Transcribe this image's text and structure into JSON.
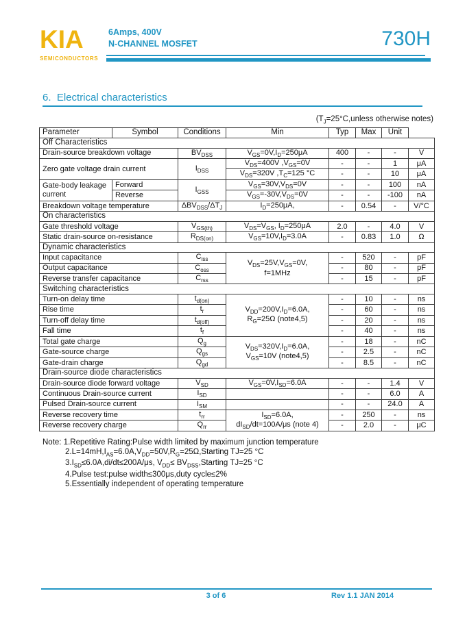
{
  "colors": {
    "accent": "#2196c4",
    "logo": "#efb410"
  },
  "header": {
    "logo_text": "KIA",
    "logo_sub": "SEMICONDUCTORS",
    "subtitle_line1": "6Amps, 400V",
    "subtitle_line2": "N-CHANNEL MOSFET",
    "part_number": "730H"
  },
  "section": {
    "title": "6.  Electrical characteristics",
    "condition_note": "(T~J~=25°C,unless otherwise notes)"
  },
  "table": {
    "headers": [
      "Parameter",
      "Symbol",
      "Conditions",
      "Min",
      "Typ",
      "Max",
      "Unit"
    ],
    "rows": [
      {
        "sec": "Off Characteristics"
      },
      {
        "cells": [
          {
            "t": "Drain-source breakdown voltage",
            "k": "p",
            "cs": 2
          },
          {
            "t": "BV~DSS~",
            "k": "s"
          },
          {
            "t": "V~GS~=0V,I~D~=250μA",
            "k": "c"
          },
          {
            "t": "400",
            "k": "n"
          },
          {
            "t": "-",
            "k": "n"
          },
          {
            "t": "-",
            "k": "n"
          },
          {
            "t": "V",
            "k": "u"
          }
        ]
      },
      {
        "cells": [
          {
            "t": "Zero gate voltage drain current",
            "k": "p",
            "cs": 2,
            "rs": 2
          },
          {
            "t": "I~DSS~",
            "k": "s",
            "rs": 2
          },
          {
            "t": "V~DS~=400V ,V~GS~=0V",
            "k": "c"
          },
          {
            "t": "-",
            "k": "n"
          },
          {
            "t": "-",
            "k": "n"
          },
          {
            "t": "1",
            "k": "n"
          },
          {
            "t": "μA",
            "k": "u"
          }
        ]
      },
      {
        "cells": [
          {
            "t": "V~DS~=320V ,T~C~=125 °C",
            "k": "c"
          },
          {
            "t": "-",
            "k": "n"
          },
          {
            "t": "-",
            "k": "n"
          },
          {
            "t": "10",
            "k": "n"
          },
          {
            "t": "μA",
            "k": "u"
          }
        ]
      },
      {
        "cells": [
          {
            "t": "Gate-body leakage current",
            "k": "pa",
            "rs": 2
          },
          {
            "t": "Forward",
            "k": "pb"
          },
          {
            "t": "I~GSS~",
            "k": "s",
            "rs": 2
          },
          {
            "t": "V~GS~=30V,V~DS~=0V",
            "k": "c"
          },
          {
            "t": "-",
            "k": "n"
          },
          {
            "t": "-",
            "k": "n"
          },
          {
            "t": "100",
            "k": "n"
          },
          {
            "t": "nA",
            "k": "u"
          }
        ]
      },
      {
        "cells": [
          {
            "t": "Reverse",
            "k": "pb"
          },
          {
            "t": "V~GS~=-30V,V~DS~=0V",
            "k": "c"
          },
          {
            "t": "-",
            "k": "n"
          },
          {
            "t": "-",
            "k": "n"
          },
          {
            "t": "-100",
            "k": "n"
          },
          {
            "t": "nA",
            "k": "u"
          }
        ]
      },
      {
        "cells": [
          {
            "t": "Breakdown voltage temperature",
            "k": "p",
            "cs": 2
          },
          {
            "t": "ΔBV~DSS~/ΔT~J~",
            "k": "s"
          },
          {
            "t": "I~D~=250μA,",
            "k": "c"
          },
          {
            "t": "-",
            "k": "n"
          },
          {
            "t": "0.54",
            "k": "n"
          },
          {
            "t": "-",
            "k": "n"
          },
          {
            "t": "V/°C",
            "k": "u"
          }
        ]
      },
      {
        "sec": "On characteristics"
      },
      {
        "cells": [
          {
            "t": "Gate threshold voltage",
            "k": "p",
            "cs": 2
          },
          {
            "t": "V~GS(th)~",
            "k": "s"
          },
          {
            "t": "V~DS~=V~GS~, I~D~=250μA",
            "k": "c"
          },
          {
            "t": "2.0",
            "k": "n"
          },
          {
            "t": "-",
            "k": "n"
          },
          {
            "t": "4.0",
            "k": "n"
          },
          {
            "t": "V",
            "k": "u"
          }
        ]
      },
      {
        "cells": [
          {
            "t": "Static drain-source on-resistance",
            "k": "p",
            "cs": 2
          },
          {
            "t": "R~DS(on)~",
            "k": "s"
          },
          {
            "t": "V~GS~=10V,I~D~=3.0A",
            "k": "c"
          },
          {
            "t": "-",
            "k": "n"
          },
          {
            "t": "0.83",
            "k": "n"
          },
          {
            "t": "1.0",
            "k": "n"
          },
          {
            "t": "Ω",
            "k": "u"
          }
        ]
      },
      {
        "sec": "Dynamic characteristics"
      },
      {
        "cells": [
          {
            "t": "Input capacitance",
            "k": "p",
            "cs": 2
          },
          {
            "t": "C~iss~",
            "k": "s"
          },
          {
            "t": "V~DS~=25V,V~GS~=0V,\nf=1MHz",
            "k": "c",
            "rs": 3
          },
          {
            "t": "-",
            "k": "n"
          },
          {
            "t": "520",
            "k": "n"
          },
          {
            "t": "-",
            "k": "n"
          },
          {
            "t": "pF",
            "k": "u"
          }
        ]
      },
      {
        "cells": [
          {
            "t": "Output capacitance",
            "k": "p",
            "cs": 2
          },
          {
            "t": "C~oss~",
            "k": "s"
          },
          {
            "t": "-",
            "k": "n"
          },
          {
            "t": "80",
            "k": "n"
          },
          {
            "t": "-",
            "k": "n"
          },
          {
            "t": "pF",
            "k": "u"
          }
        ]
      },
      {
        "cells": [
          {
            "t": "Reverse transfer capacitance",
            "k": "p",
            "cs": 2
          },
          {
            "t": "C~rss~",
            "k": "s"
          },
          {
            "t": "-",
            "k": "n"
          },
          {
            "t": "15",
            "k": "n"
          },
          {
            "t": "-",
            "k": "n"
          },
          {
            "t": "pF",
            "k": "u"
          }
        ]
      },
      {
        "sec": "Switching characteristics"
      },
      {
        "cells": [
          {
            "t": "Turn-on delay time",
            "k": "p",
            "cs": 2
          },
          {
            "t": "t~d(on)~",
            "k": "s"
          },
          {
            "t": "V~DD~=200V,I~D~=6.0A,\nR~G~=25Ω (note4,5)",
            "k": "c",
            "rs": 4
          },
          {
            "t": "-",
            "k": "n"
          },
          {
            "t": "10",
            "k": "n"
          },
          {
            "t": "-",
            "k": "n"
          },
          {
            "t": "ns",
            "k": "u"
          }
        ]
      },
      {
        "cells": [
          {
            "t": "Rise time",
            "k": "p",
            "cs": 2
          },
          {
            "t": "t~r~",
            "k": "s"
          },
          {
            "t": "-",
            "k": "n"
          },
          {
            "t": "60",
            "k": "n"
          },
          {
            "t": "-",
            "k": "n"
          },
          {
            "t": "ns",
            "k": "u"
          }
        ]
      },
      {
        "cells": [
          {
            "t": "Turn-off delay time",
            "k": "p",
            "cs": 2
          },
          {
            "t": "t~d(off)~",
            "k": "s"
          },
          {
            "t": "-",
            "k": "n"
          },
          {
            "t": "20",
            "k": "n"
          },
          {
            "t": "-",
            "k": "n"
          },
          {
            "t": "ns",
            "k": "u"
          }
        ]
      },
      {
        "cells": [
          {
            "t": "Fall time",
            "k": "p",
            "cs": 2
          },
          {
            "t": "t~f~",
            "k": "s"
          },
          {
            "t": "-",
            "k": "n"
          },
          {
            "t": "40",
            "k": "n"
          },
          {
            "t": "-",
            "k": "n"
          },
          {
            "t": "ns",
            "k": "u"
          }
        ]
      },
      {
        "cells": [
          {
            "t": "Total gate charge",
            "k": "p",
            "cs": 2
          },
          {
            "t": "Q~g~",
            "k": "s"
          },
          {
            "t": "V~DS~=320V,I~D~=6.0A,\nV~GS~=10V (note4,5)",
            "k": "c",
            "rs": 3
          },
          {
            "t": "-",
            "k": "n"
          },
          {
            "t": "18",
            "k": "n"
          },
          {
            "t": "-",
            "k": "n"
          },
          {
            "t": "nC",
            "k": "u"
          }
        ]
      },
      {
        "cells": [
          {
            "t": "Gate-source charge",
            "k": "p",
            "cs": 2
          },
          {
            "t": "Q~gs~",
            "k": "s"
          },
          {
            "t": "-",
            "k": "n"
          },
          {
            "t": "2.5",
            "k": "n"
          },
          {
            "t": "-",
            "k": "n"
          },
          {
            "t": "nC",
            "k": "u"
          }
        ]
      },
      {
        "cells": [
          {
            "t": "Gate-drain charge",
            "k": "p",
            "cs": 2
          },
          {
            "t": "Q~gd~",
            "k": "s"
          },
          {
            "t": "-",
            "k": "n"
          },
          {
            "t": "8.5",
            "k": "n"
          },
          {
            "t": "-",
            "k": "n"
          },
          {
            "t": "nC",
            "k": "u"
          }
        ]
      },
      {
        "sec": "Drain-source diode characteristics"
      },
      {
        "cells": [
          {
            "t": "Drain-source diode forward voltage",
            "k": "p",
            "cs": 2
          },
          {
            "t": "V~SD~",
            "k": "s"
          },
          {
            "t": "V~GS~=0V,I~SD~=6.0A",
            "k": "c"
          },
          {
            "t": "-",
            "k": "n"
          },
          {
            "t": "-",
            "k": "n"
          },
          {
            "t": "1.4",
            "k": "n"
          },
          {
            "t": "V",
            "k": "u"
          }
        ]
      },
      {
        "cells": [
          {
            "t": "Continuous Drain-source current",
            "k": "p",
            "cs": 2
          },
          {
            "t": "I~SD~",
            "k": "s"
          },
          {
            "t": "",
            "k": "c"
          },
          {
            "t": "-",
            "k": "n"
          },
          {
            "t": "-",
            "k": "n"
          },
          {
            "t": "6.0",
            "k": "n"
          },
          {
            "t": "A",
            "k": "u"
          }
        ]
      },
      {
        "cells": [
          {
            "t": "Pulsed Drain-source current",
            "k": "p",
            "cs": 2
          },
          {
            "t": "I~SM~",
            "k": "s"
          },
          {
            "t": "",
            "k": "c"
          },
          {
            "t": "-",
            "k": "n"
          },
          {
            "t": "-",
            "k": "n"
          },
          {
            "t": "24.0",
            "k": "n"
          },
          {
            "t": "A",
            "k": "u"
          }
        ]
      },
      {
        "cells": [
          {
            "t": "Reverse recovery time",
            "k": "p",
            "cs": 2
          },
          {
            "t": "t~rr~",
            "k": "s"
          },
          {
            "t": "I~SD~=6.0A,\ndI~SD~/dt=100A/μs (note 4)",
            "k": "c",
            "rs": 2
          },
          {
            "t": "-",
            "k": "n"
          },
          {
            "t": "250",
            "k": "n"
          },
          {
            "t": "-",
            "k": "n"
          },
          {
            "t": "ns",
            "k": "u"
          }
        ]
      },
      {
        "cells": [
          {
            "t": "Reverse recovery charge",
            "k": "p",
            "cs": 2
          },
          {
            "t": "Q~rr~",
            "k": "s"
          },
          {
            "t": "-",
            "k": "n"
          },
          {
            "t": "2.0",
            "k": "n"
          },
          {
            "t": "-",
            "k": "n"
          },
          {
            "t": "μC",
            "k": "u"
          }
        ]
      }
    ]
  },
  "notes": [
    "Note: 1.Repetitive Rating:Pulse width limited by maximum junction temperature",
    "2.L=14mH,I~AS~=6.0A,V~DD~=50V,R~G~=25Ω,Starting TJ=25 °C",
    "3.I~SD~≤6.0A,di/dt≤200A/μs, V~DD~≤ BV~DSS~,Starting TJ=25 °C",
    "4.Pulse test:pulse width≤300μs,duty cycle≤2%",
    "5.Essentially independent of operating temperature"
  ],
  "footer": {
    "page": "3 of 6",
    "rev": "Rev 1.1 JAN 2014"
  }
}
